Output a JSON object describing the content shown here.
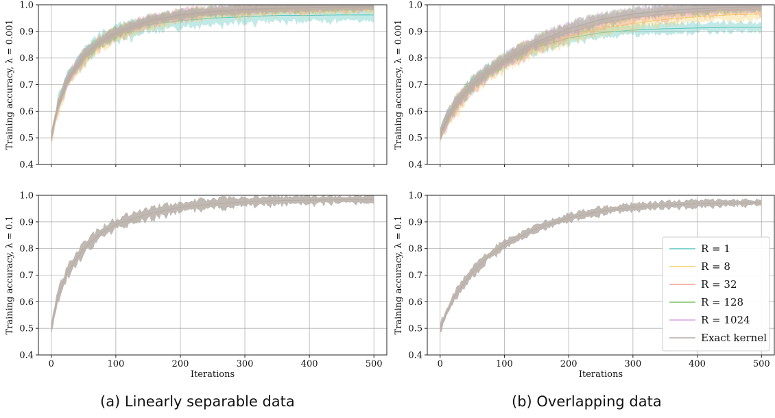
{
  "captions": [
    "(a) Linearly separable data",
    "(b) Overlapping data"
  ],
  "chart_data": [
    {
      "type": "line",
      "panel": "(a) top",
      "ylabel": "Training accuracy, λ = 0.001",
      "xlabel": "",
      "xlim": [
        -20,
        520
      ],
      "ylim": [
        0.4,
        1.0
      ],
      "xticks": [
        0,
        100,
        200,
        300,
        400,
        500
      ],
      "yticks": [
        "0.4",
        "0.5",
        "0.6",
        "0.7",
        "0.8",
        "0.9",
        "1.0"
      ],
      "show_xticklabels": false,
      "grid": true,
      "band_alpha": 0.38,
      "series": [
        {
          "name": "R = 1",
          "color": "#5cc6bd",
          "x": [
            0,
            10,
            25,
            50,
            75,
            100,
            150,
            200,
            250,
            300,
            350,
            400,
            450,
            500
          ],
          "y": [
            0.5,
            0.62,
            0.72,
            0.8,
            0.86,
            0.89,
            0.925,
            0.94,
            0.95,
            0.955,
            0.96,
            0.96,
            0.962,
            0.962
          ],
          "spread": 0.03
        },
        {
          "name": "R = 8",
          "color": "#f2d06b",
          "x": [
            0,
            10,
            25,
            50,
            75,
            100,
            150,
            200,
            250,
            300,
            350,
            400,
            450,
            500
          ],
          "y": [
            0.5,
            0.61,
            0.71,
            0.79,
            0.85,
            0.885,
            0.93,
            0.955,
            0.968,
            0.975,
            0.98,
            0.982,
            0.984,
            0.985
          ],
          "spread": 0.025
        },
        {
          "name": "R = 32",
          "color": "#f5a08c",
          "x": [
            0,
            10,
            25,
            50,
            75,
            100,
            150,
            200,
            250,
            300,
            350,
            400,
            450,
            500
          ],
          "y": [
            0.5,
            0.61,
            0.71,
            0.8,
            0.855,
            0.89,
            0.935,
            0.96,
            0.972,
            0.98,
            0.985,
            0.988,
            0.99,
            0.99
          ],
          "spread": 0.025
        },
        {
          "name": "R = 128",
          "color": "#7cc462",
          "x": [
            0,
            10,
            25,
            50,
            75,
            100,
            150,
            200,
            250,
            300,
            350,
            400,
            450,
            500
          ],
          "y": [
            0.5,
            0.62,
            0.72,
            0.81,
            0.86,
            0.895,
            0.94,
            0.962,
            0.975,
            0.982,
            0.987,
            0.99,
            0.991,
            0.992
          ],
          "spread": 0.02
        },
        {
          "name": "R = 1024",
          "color": "#d2a6e2",
          "x": [
            0,
            10,
            25,
            50,
            75,
            100,
            150,
            200,
            250,
            300,
            350,
            400,
            450,
            500
          ],
          "y": [
            0.5,
            0.62,
            0.72,
            0.81,
            0.86,
            0.895,
            0.94,
            0.963,
            0.976,
            0.983,
            0.988,
            0.99,
            0.992,
            0.993
          ],
          "spread": 0.02
        },
        {
          "name": "Exact kernel",
          "color": "#b5aca5",
          "x": [
            0,
            10,
            25,
            50,
            75,
            100,
            150,
            200,
            250,
            300,
            350,
            400,
            450,
            500
          ],
          "y": [
            0.5,
            0.62,
            0.72,
            0.81,
            0.86,
            0.895,
            0.94,
            0.963,
            0.976,
            0.983,
            0.988,
            0.99,
            0.992,
            0.993
          ],
          "spread": 0.02
        }
      ]
    },
    {
      "type": "line",
      "panel": "(b) top",
      "ylabel": "Training accuracy, λ = 0.001",
      "xlabel": "",
      "xlim": [
        -20,
        520
      ],
      "ylim": [
        0.4,
        1.0
      ],
      "xticks": [
        0,
        100,
        200,
        300,
        400,
        500
      ],
      "yticks": [
        "0.4",
        "0.5",
        "0.6",
        "0.7",
        "0.8",
        "0.9",
        "1.0"
      ],
      "show_xticklabels": false,
      "grid": true,
      "band_alpha": 0.38,
      "series": [
        {
          "name": "R = 1",
          "color": "#5cc6bd",
          "x": [
            0,
            10,
            25,
            50,
            75,
            100,
            150,
            200,
            250,
            300,
            350,
            400,
            450,
            500
          ],
          "y": [
            0.51,
            0.57,
            0.63,
            0.7,
            0.75,
            0.79,
            0.84,
            0.875,
            0.895,
            0.905,
            0.91,
            0.913,
            0.915,
            0.915
          ],
          "spread": 0.025
        },
        {
          "name": "R = 8",
          "color": "#f2d06b",
          "x": [
            0,
            10,
            25,
            50,
            75,
            100,
            150,
            200,
            250,
            300,
            350,
            400,
            450,
            500
          ],
          "y": [
            0.51,
            0.56,
            0.62,
            0.69,
            0.74,
            0.78,
            0.84,
            0.88,
            0.91,
            0.93,
            0.945,
            0.955,
            0.962,
            0.966
          ],
          "spread": 0.03
        },
        {
          "name": "R = 32",
          "color": "#f5a08c",
          "x": [
            0,
            10,
            25,
            50,
            75,
            100,
            150,
            200,
            250,
            300,
            350,
            400,
            450,
            500
          ],
          "y": [
            0.51,
            0.56,
            0.62,
            0.69,
            0.74,
            0.785,
            0.85,
            0.895,
            0.93,
            0.952,
            0.965,
            0.975,
            0.982,
            0.985
          ],
          "spread": 0.03
        },
        {
          "name": "R = 128",
          "color": "#7cc462",
          "x": [
            0,
            10,
            25,
            50,
            75,
            100,
            150,
            200,
            250,
            300,
            350,
            400,
            450,
            500
          ],
          "y": [
            0.51,
            0.57,
            0.63,
            0.7,
            0.75,
            0.79,
            0.86,
            0.91,
            0.944,
            0.965,
            0.977,
            0.985,
            0.99,
            0.992
          ],
          "spread": 0.025
        },
        {
          "name": "R = 1024",
          "color": "#d2a6e2",
          "x": [
            0,
            10,
            25,
            50,
            75,
            100,
            150,
            200,
            250,
            300,
            350,
            400,
            450,
            500
          ],
          "y": [
            0.51,
            0.57,
            0.63,
            0.7,
            0.75,
            0.79,
            0.86,
            0.91,
            0.945,
            0.966,
            0.978,
            0.986,
            0.99,
            0.993
          ],
          "spread": 0.025
        },
        {
          "name": "Exact kernel",
          "color": "#b5aca5",
          "x": [
            0,
            10,
            25,
            50,
            75,
            100,
            150,
            200,
            250,
            300,
            350,
            400,
            450,
            500
          ],
          "y": [
            0.51,
            0.57,
            0.63,
            0.7,
            0.75,
            0.79,
            0.86,
            0.91,
            0.945,
            0.966,
            0.978,
            0.986,
            0.99,
            0.993
          ],
          "spread": 0.025
        }
      ]
    },
    {
      "type": "line",
      "panel": "(a) bottom",
      "ylabel": "Training accuracy, λ = 0.1",
      "xlabel": "Iterations",
      "xlim": [
        -20,
        520
      ],
      "ylim": [
        0.4,
        1.0
      ],
      "xticks": [
        0,
        100,
        200,
        300,
        400,
        500
      ],
      "yticks": [
        "0.4",
        "0.5",
        "0.6",
        "0.7",
        "0.8",
        "0.9",
        "1.0"
      ],
      "show_xticklabels": true,
      "grid": true,
      "band_alpha": 0.85,
      "series": [
        {
          "name": "Exact kernel",
          "color": "#b5aca5",
          "x": [
            0,
            10,
            25,
            50,
            75,
            100,
            150,
            200,
            250,
            300,
            350,
            400,
            450,
            500
          ],
          "y": [
            0.5,
            0.62,
            0.71,
            0.8,
            0.855,
            0.89,
            0.93,
            0.955,
            0.968,
            0.975,
            0.98,
            0.982,
            0.983,
            0.984
          ],
          "spread": 0.022
        }
      ]
    },
    {
      "type": "line",
      "panel": "(b) bottom",
      "ylabel": "Training accuracy, λ = 0.1",
      "xlabel": "Iterations",
      "xlim": [
        -20,
        520
      ],
      "ylim": [
        0.4,
        1.0
      ],
      "xticks": [
        0,
        100,
        200,
        300,
        400,
        500
      ],
      "yticks": [
        "0.4",
        "0.5",
        "0.6",
        "0.7",
        "0.8",
        "0.9",
        "1.0"
      ],
      "show_xticklabels": true,
      "grid": true,
      "band_alpha": 0.85,
      "legend": {
        "placement": "lower-right",
        "entries": [
          {
            "label": "R = 1",
            "color": "#5cc6bd"
          },
          {
            "label": "R = 8",
            "color": "#f2d06b"
          },
          {
            "label": "R = 32",
            "color": "#f5a08c"
          },
          {
            "label": "R = 128",
            "color": "#7cc462"
          },
          {
            "label": "R = 1024",
            "color": "#d2a6e2"
          },
          {
            "label": "Exact kernel",
            "color": "#b5aca5"
          }
        ]
      },
      "series": [
        {
          "name": "Exact kernel",
          "color": "#b5aca5",
          "x": [
            0,
            10,
            25,
            50,
            75,
            100,
            150,
            200,
            250,
            300,
            350,
            400,
            450,
            500
          ],
          "y": [
            0.5,
            0.56,
            0.63,
            0.71,
            0.77,
            0.815,
            0.875,
            0.915,
            0.94,
            0.955,
            0.963,
            0.968,
            0.971,
            0.972
          ],
          "spread": 0.018
        }
      ]
    }
  ]
}
